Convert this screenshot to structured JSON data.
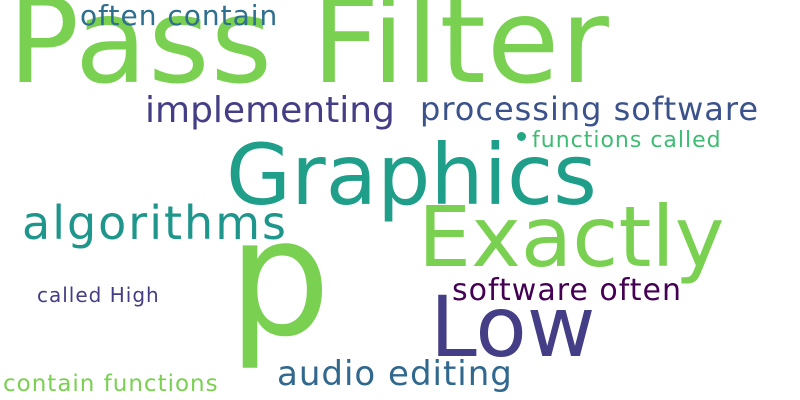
{
  "words": {
    "pass_filter": {
      "text": "Pass Filter",
      "color": "#7ad151"
    },
    "often_contain": {
      "text": "often contain",
      "color": "#2e6e8e"
    },
    "implementing": {
      "text": "implementing",
      "color": "#433e85"
    },
    "processing_software": {
      "text": "processing software",
      "color": "#3b528b"
    },
    "functions_called": {
      "text": "functions called",
      "color": "#3fbc73"
    },
    "graphics": {
      "text": "Graphics",
      "color": "#1f9e89"
    },
    "algorithms": {
      "text": "algorithms",
      "color": "#1f968b"
    },
    "exactly": {
      "text": "Exactly",
      "color": "#7ad151"
    },
    "p": {
      "text": "p",
      "color": "#7ad151"
    },
    "called_high": {
      "text": "called High",
      "color": "#433e85"
    },
    "software_often": {
      "text": "software often",
      "color": "#440154"
    },
    "low": {
      "text": "Low",
      "color": "#433e85"
    },
    "audio_editing": {
      "text": "audio editing",
      "color": "#31688e"
    },
    "contain_functions": {
      "text": "contain functions",
      "color": "#7ad151"
    }
  },
  "dot_color": "#22a884"
}
